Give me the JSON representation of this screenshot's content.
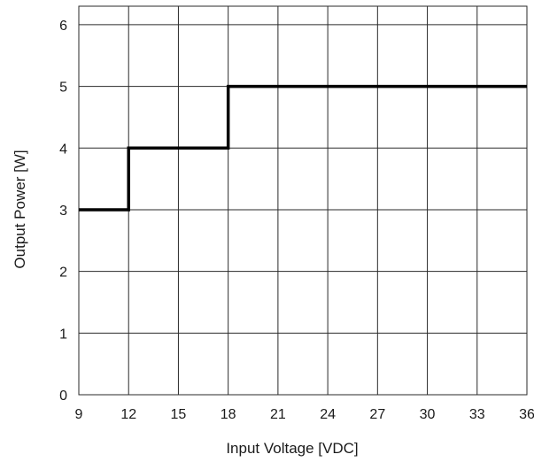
{
  "chart_data": {
    "type": "line",
    "step": true,
    "xlabel": "Input Voltage [VDC]",
    "ylabel": "Output Power [W]",
    "xlim": [
      9,
      36
    ],
    "ylim": [
      0,
      6.3
    ],
    "xticks": [
      9,
      12,
      15,
      18,
      21,
      24,
      27,
      30,
      33,
      36
    ],
    "yticks": [
      0,
      1,
      2,
      3,
      4,
      5,
      6
    ],
    "grid": true,
    "series": [
      {
        "x": [
          9,
          12,
          12,
          18,
          18,
          36
        ],
        "y": [
          3,
          3,
          4,
          4,
          5,
          5
        ],
        "color": "#000000"
      }
    ]
  }
}
